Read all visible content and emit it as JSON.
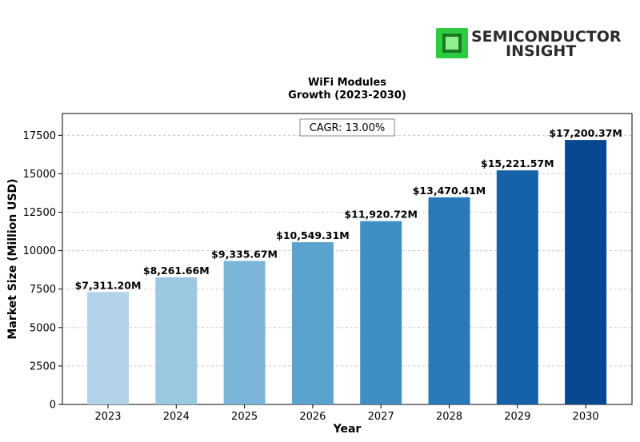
{
  "logo": {
    "line1": "SEMICONDUCTOR",
    "line2": "INSIGHT",
    "colors": {
      "chip": "#2ecc40",
      "chip_dark": "#1a7a24",
      "text": "#2b2b2b"
    }
  },
  "annotation": {
    "text": "CAGR: 13.00%"
  },
  "chart_data": {
    "type": "bar",
    "title": "WiFi Modules\nGrowth (2023-2030)",
    "title_lines": [
      "WiFi Modules",
      "Growth (2023-2030)"
    ],
    "xlabel": "Year",
    "ylabel": "Market Size (Million USD)",
    "categories": [
      "2023",
      "2024",
      "2025",
      "2026",
      "2027",
      "2028",
      "2029",
      "2030"
    ],
    "values": [
      7311.2,
      8261.66,
      9335.67,
      10549.31,
      11920.72,
      13470.41,
      15221.57,
      17200.37
    ],
    "data_labels": [
      "$7,311.20M",
      "$8,261.66M",
      "$9,335.67M",
      "$10,549.31M",
      "$11,920.72M",
      "$13,470.41M",
      "$15,221.57M",
      "$17,200.37M"
    ],
    "yticks": [
      0,
      2500,
      5000,
      7500,
      10000,
      12500,
      15000,
      17500
    ],
    "ylim": [
      0,
      18920
    ],
    "grid": true,
    "bar_colors": [
      "#b3d3e8",
      "#9ac8e0",
      "#7bb6d9",
      "#5ba3cf",
      "#3f8fc5",
      "#2978b8",
      "#1562a9",
      "#084891"
    ]
  }
}
